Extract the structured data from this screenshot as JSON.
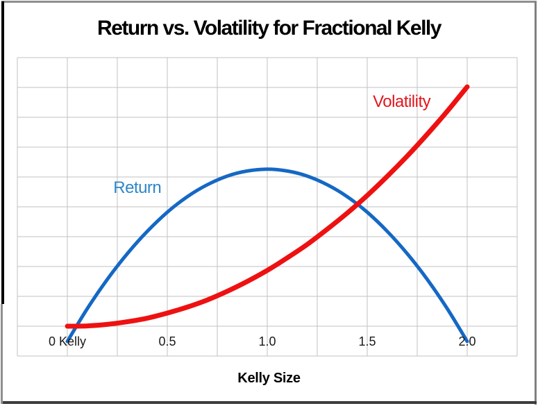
{
  "frame": {
    "top_color": "#8F8F8F",
    "right_color": "#808080",
    "bottom_color": "#3C3C3C",
    "left_upper_color": "#000000",
    "left_lower_color": "#8F8F8F"
  },
  "chart_data": {
    "type": "line",
    "title": "Return vs. Volatility for Fractional Kelly",
    "title_color": "#000000",
    "xlabel": "Kelly Size",
    "ylabel": "",
    "grid": {
      "show": true,
      "color": "#C2C2C2"
    },
    "x_axis": {
      "min": -0.25,
      "max": 2.25,
      "grid_step": 0.25,
      "ticks": [
        {
          "value": 0,
          "label": "0 Kelly"
        },
        {
          "value": 0.5,
          "label": "0.5"
        },
        {
          "value": 1.0,
          "label": "1.0"
        },
        {
          "value": 1.5,
          "label": "1.5"
        },
        {
          "value": 2.0,
          "label": "2.0"
        }
      ],
      "tick_label_color": "#1A1A1A"
    },
    "y_axis": {
      "min": -1,
      "max": 9,
      "grid_step": 1,
      "tick_labels_shown": false,
      "note": "no numeric y labels shown; values are relative units where 1 unit = one gridline row and 0 = the x-axis baseline"
    },
    "legend": "inline curve labels, no legend box",
    "series": [
      {
        "name": "Return",
        "color": "#1568C4",
        "stroke_width": 5,
        "points": [
          [
            0,
            -0.51
          ],
          [
            0.1,
            0.59
          ],
          [
            0.2,
            1.57
          ],
          [
            0.3,
            2.43
          ],
          [
            0.4,
            3.18
          ],
          [
            0.5,
            3.82
          ],
          [
            0.6,
            4.34
          ],
          [
            0.7,
            4.74
          ],
          [
            0.8,
            5.03
          ],
          [
            0.9,
            5.2
          ],
          [
            1.0,
            5.26
          ],
          [
            1.1,
            5.2
          ],
          [
            1.2,
            5.03
          ],
          [
            1.3,
            4.74
          ],
          [
            1.4,
            4.34
          ],
          [
            1.5,
            3.82
          ],
          [
            1.6,
            3.18
          ],
          [
            1.7,
            2.43
          ],
          [
            1.8,
            1.57
          ],
          [
            1.9,
            0.59
          ],
          [
            2.0,
            -0.51
          ]
        ],
        "label": {
          "text": "Return",
          "color": "#2E86C9",
          "anchor_x": 0.23,
          "anchor_y": 4.93
        }
      },
      {
        "name": "Volatility",
        "color": "#EE1111",
        "stroke_width": 7,
        "points": [
          [
            0,
            0
          ],
          [
            0.1,
            0.01
          ],
          [
            0.2,
            0.06
          ],
          [
            0.3,
            0.15
          ],
          [
            0.4,
            0.27
          ],
          [
            0.5,
            0.44
          ],
          [
            0.6,
            0.64
          ],
          [
            0.7,
            0.88
          ],
          [
            0.8,
            1.17
          ],
          [
            0.9,
            1.5
          ],
          [
            1.0,
            1.87
          ],
          [
            1.1,
            2.29
          ],
          [
            1.2,
            2.74
          ],
          [
            1.3,
            3.25
          ],
          [
            1.4,
            3.79
          ],
          [
            1.5,
            4.38
          ],
          [
            1.6,
            5.02
          ],
          [
            1.7,
            5.7
          ],
          [
            1.8,
            6.43
          ],
          [
            1.9,
            7.2
          ],
          [
            2.0,
            8.02
          ]
        ],
        "label": {
          "text": "Volatility",
          "color": "#E3161C",
          "anchor_x": 1.528,
          "anchor_y": 7.81
        }
      }
    ]
  }
}
